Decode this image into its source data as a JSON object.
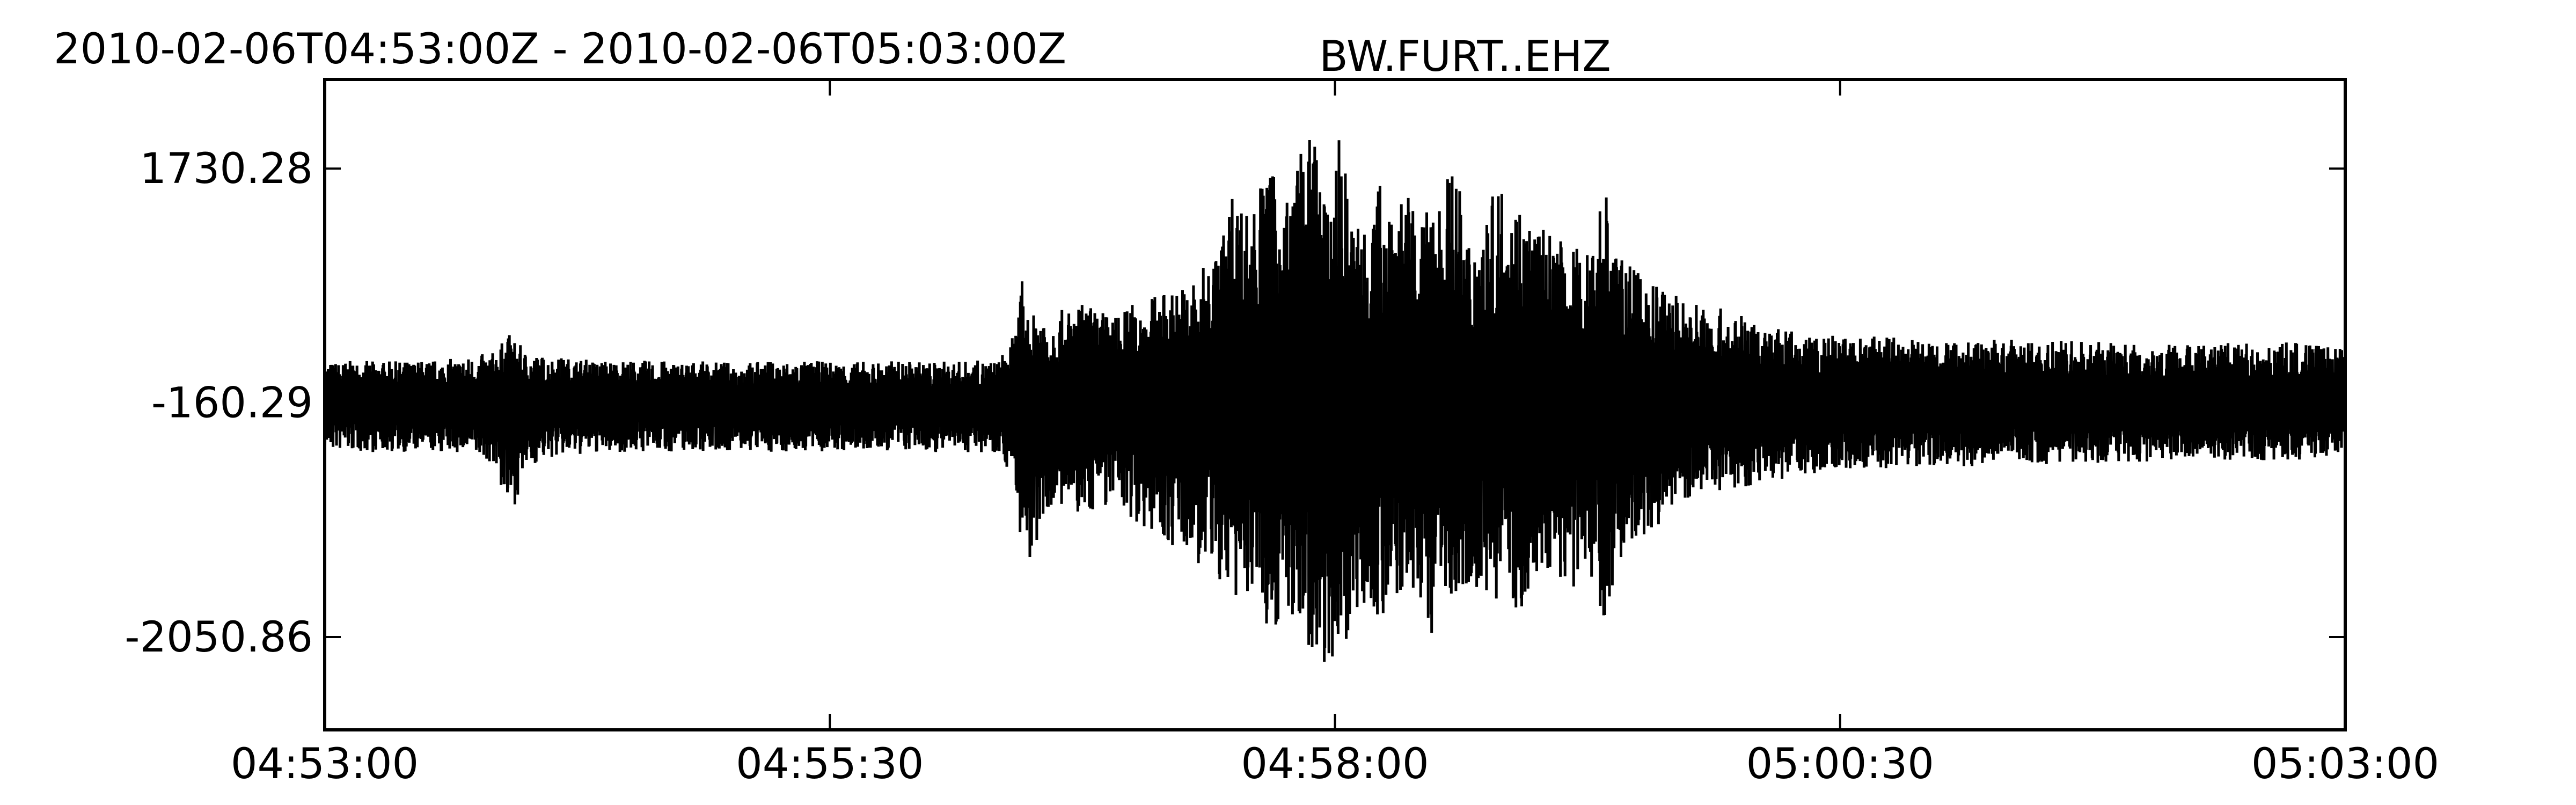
{
  "header": {
    "time_range": "2010-02-06T04:53:00Z  -  2010-02-06T05:03:00Z"
  },
  "chart_data": {
    "type": "line",
    "title": "BW.FURT..EHZ",
    "xlabel": "",
    "ylabel": "",
    "grid": false,
    "x_unit": "time (UTC)",
    "xlim": [
      "04:53:00",
      "05:03:00"
    ],
    "xlim_seconds": [
      0,
      600
    ],
    "ylim": [
      -2800,
      2450
    ],
    "x_ticks": [
      {
        "label": "04:53:00",
        "value": 0
      },
      {
        "label": "04:55:30",
        "value": 150
      },
      {
        "label": "04:58:00",
        "value": 300
      },
      {
        "label": "05:00:30",
        "value": 450
      },
      {
        "label": "05:03:00",
        "value": 600
      }
    ],
    "y_ticks": [
      {
        "label": "1730.28",
        "value": 1730.28
      },
      {
        "label": "-160.29",
        "value": -160.29
      },
      {
        "label": "-2050.86",
        "value": -2050.86
      }
    ],
    "line_color": "#000000",
    "series": [
      {
        "name": "",
        "x": [
          0,
          10,
          20,
          30,
          40,
          50,
          55,
          60,
          65,
          70,
          75,
          80,
          90,
          100,
          110,
          120,
          130,
          140,
          150,
          160,
          170,
          180,
          190,
          200,
          205,
          207,
          208,
          210,
          212,
          215,
          220,
          225,
          230,
          235,
          240,
          245,
          250,
          255,
          260,
          265,
          270,
          275,
          280,
          285,
          290,
          295,
          298,
          300,
          302,
          305,
          310,
          315,
          320,
          325,
          330,
          335,
          340,
          345,
          350,
          355,
          360,
          365,
          370,
          375,
          380,
          385,
          390,
          395,
          400,
          410,
          420,
          430,
          440,
          450,
          460,
          470,
          480,
          490,
          500,
          510,
          520,
          530,
          540,
          550,
          560,
          570,
          580,
          590,
          600
        ],
        "envelope_max": [
          170,
          180,
          175,
          185,
          200,
          250,
          400,
          250,
          220,
          210,
          200,
          190,
          185,
          180,
          175,
          170,
          175,
          180,
          175,
          175,
          180,
          175,
          180,
          185,
          400,
          850,
          600,
          500,
          700,
          550,
          600,
          650,
          600,
          550,
          650,
          700,
          750,
          800,
          900,
          1100,
          1600,
          1400,
          1800,
          1500,
          1900,
          2100,
          1300,
          1900,
          2050,
          1300,
          1500,
          1700,
          1600,
          1300,
          1500,
          1800,
          1200,
          1400,
          1700,
          1500,
          1300,
          1200,
          1100,
          1100,
          1700,
          1000,
          900,
          800,
          750,
          650,
          550,
          450,
          400,
          380,
          380,
          370,
          350,
          360,
          350,
          340,
          340,
          330,
          330,
          320,
          330,
          320,
          330,
          320,
          330
        ],
        "envelope_min": [
          -550,
          -560,
          -560,
          -560,
          -570,
          -650,
          -1100,
          -700,
          -620,
          -600,
          -590,
          -570,
          -560,
          -560,
          -550,
          -550,
          -560,
          -560,
          -560,
          -560,
          -550,
          -560,
          -560,
          -560,
          -800,
          -1400,
          -1100,
          -1900,
          -1200,
          -1000,
          -1050,
          -1100,
          -1000,
          -1000,
          -1100,
          -1200,
          -1300,
          -1400,
          -1500,
          -1600,
          -1800,
          -1700,
          -2000,
          -1900,
          -2100,
          -2200,
          -2300,
          -2200,
          -2250,
          -1900,
          -1800,
          -2000,
          -1700,
          -1800,
          -2100,
          -1700,
          -1600,
          -1800,
          -1700,
          -1900,
          -1600,
          -1500,
          -1700,
          -1500,
          -1900,
          -1400,
          -1300,
          -1200,
          -1000,
          -900,
          -850,
          -800,
          -750,
          -700,
          -700,
          -680,
          -680,
          -670,
          -660,
          -660,
          -650,
          -650,
          -640,
          -640,
          -630,
          -630,
          -620,
          -620,
          -620
        ]
      }
    ]
  }
}
